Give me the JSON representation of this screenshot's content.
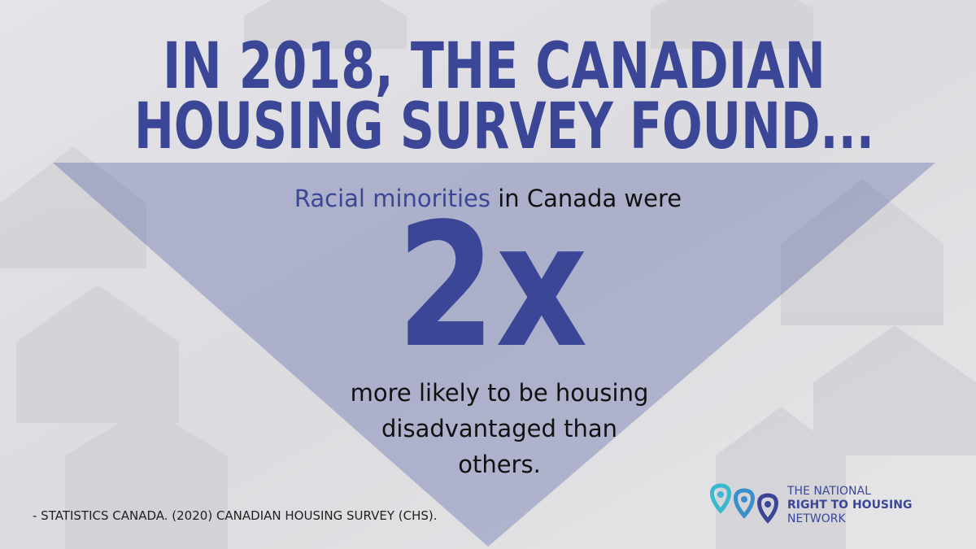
{
  "header": {
    "title_lines": [
      "IN 2018, THE CANADIAN",
      "HOUSING SURVEY FOUND..."
    ]
  },
  "statement": {
    "highlight": "Racial minorities",
    "lead_rest": "in Canada were",
    "figure": "2x",
    "body_lines": [
      "more likely to be housing",
      "disadvantaged than",
      "others."
    ]
  },
  "source": "- STATISTICS CANADA. (2020) CANADIAN HOUSING SURVEY (CHS).",
  "logo": {
    "lines": [
      "THE NATIONAL",
      "RIGHT TO HOUSING",
      "NETWORK"
    ]
  }
}
